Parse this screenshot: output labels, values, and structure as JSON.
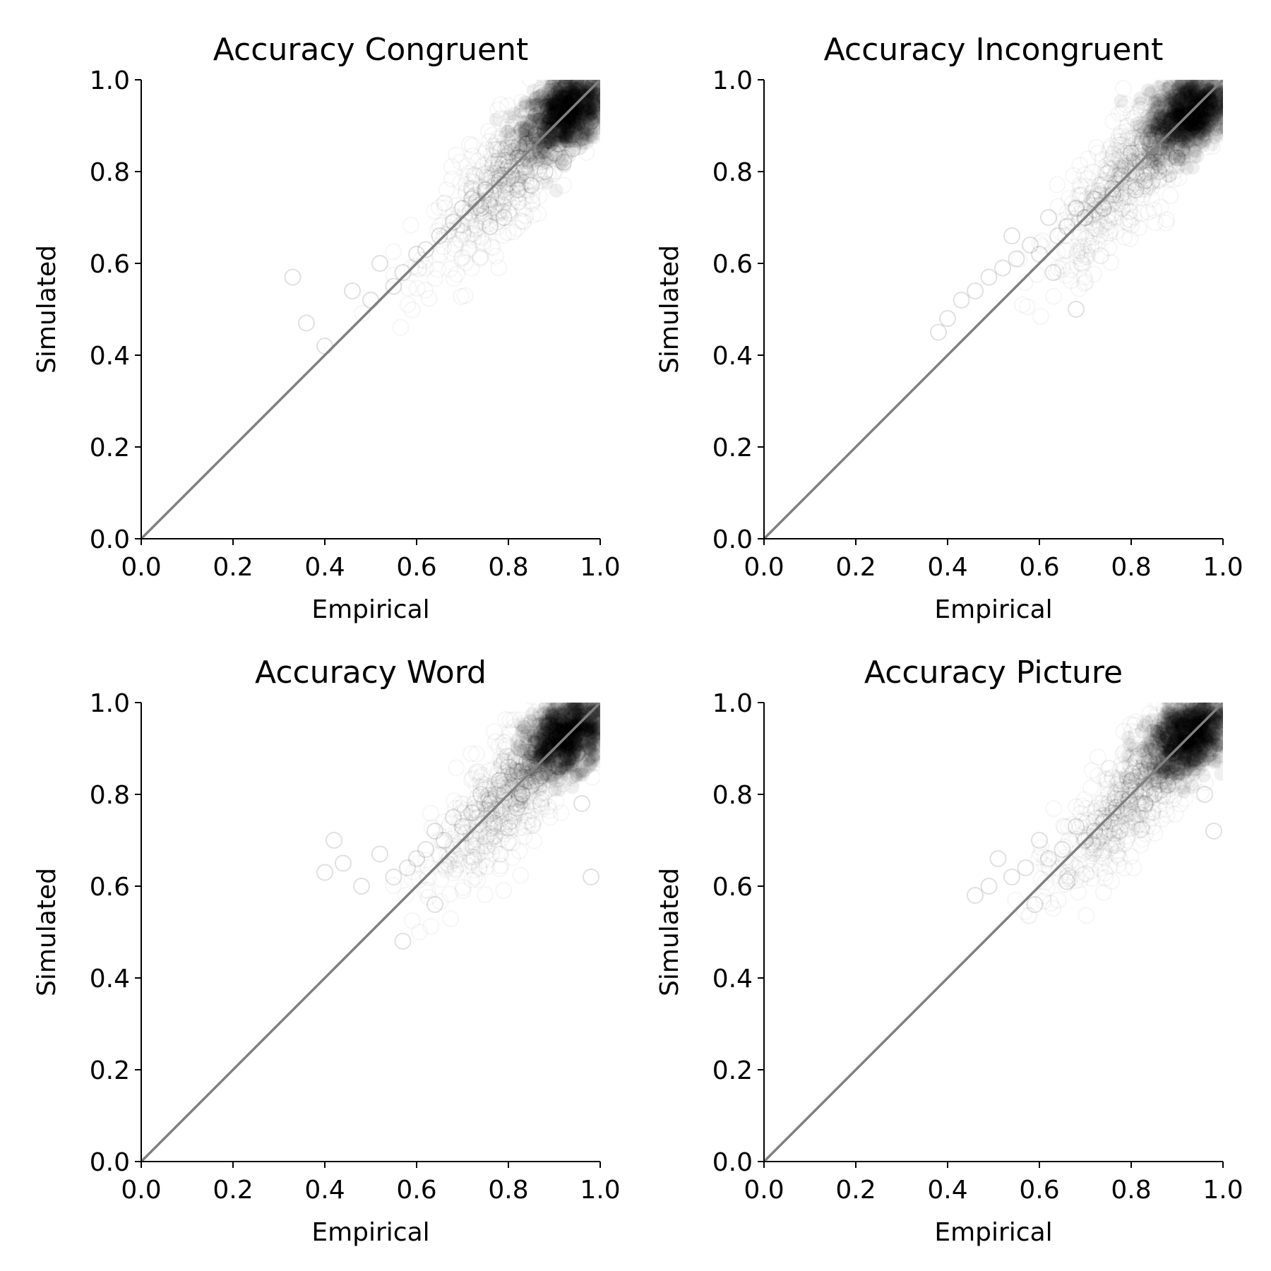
{
  "chart_data": [
    {
      "type": "scatter",
      "title": "Accuracy Congruent",
      "xlabel": "Empirical",
      "ylabel": "Simulated",
      "xlim": [
        0.0,
        1.0
      ],
      "ylim": [
        0.0,
        1.0
      ],
      "xticks": [
        "0.0",
        "0.2",
        "0.4",
        "0.6",
        "0.8",
        "1.0"
      ],
      "yticks": [
        "0.0",
        "0.2",
        "0.4",
        "0.6",
        "0.8",
        "1.0"
      ],
      "reference_line": {
        "from": [
          0,
          0
        ],
        "to": [
          1,
          1
        ],
        "color": "#808080"
      },
      "point_color": "#000000",
      "point_alpha": "very low (dense overlap appears black)",
      "series": [
        {
          "x": [
            0.95,
            0.93,
            0.97,
            0.91,
            0.89,
            0.94,
            0.96,
            0.92,
            0.98,
            0.9,
            0.88,
            0.93,
            0.95,
            0.87,
            0.91,
            0.86,
            0.94,
            0.9,
            0.84,
            0.92,
            0.82,
            0.88,
            0.8,
            0.78,
            0.85,
            0.75,
            0.72,
            0.7,
            0.68,
            0.65,
            0.62,
            0.6,
            0.57,
            0.55,
            0.52,
            0.5,
            0.46,
            0.4,
            0.36,
            0.33,
            0.76,
            0.74,
            0.82,
            0.79
          ],
          "y": [
            0.95,
            0.93,
            0.97,
            0.9,
            0.92,
            0.88,
            0.93,
            0.96,
            0.91,
            0.94,
            0.89,
            0.87,
            0.9,
            0.91,
            0.86,
            0.88,
            0.85,
            0.84,
            0.86,
            0.82,
            0.83,
            0.8,
            0.81,
            0.78,
            0.77,
            0.76,
            0.74,
            0.72,
            0.69,
            0.66,
            0.63,
            0.62,
            0.58,
            0.55,
            0.6,
            0.52,
            0.54,
            0.42,
            0.47,
            0.57,
            0.68,
            0.72,
            0.76,
            0.7
          ]
        }
      ]
    },
    {
      "type": "scatter",
      "title": "Accuracy Incongruent",
      "xlabel": "Empirical",
      "ylabel": "Simulated",
      "xlim": [
        0.0,
        1.0
      ],
      "ylim": [
        0.0,
        1.0
      ],
      "xticks": [
        "0.0",
        "0.2",
        "0.4",
        "0.6",
        "0.8",
        "1.0"
      ],
      "yticks": [
        "0.0",
        "0.2",
        "0.4",
        "0.6",
        "0.8",
        "1.0"
      ],
      "reference_line": {
        "from": [
          0,
          0
        ],
        "to": [
          1,
          1
        ],
        "color": "#808080"
      },
      "point_color": "#000000",
      "point_alpha": "very low (dense overlap appears black)",
      "series": [
        {
          "x": [
            0.92,
            0.9,
            0.94,
            0.88,
            0.86,
            0.95,
            0.91,
            0.89,
            0.93,
            0.97,
            0.85,
            0.87,
            0.84,
            0.9,
            0.82,
            0.86,
            0.8,
            0.83,
            0.78,
            0.81,
            0.76,
            0.74,
            0.72,
            0.7,
            0.68,
            0.66,
            0.64,
            0.62,
            0.6,
            0.58,
            0.55,
            0.52,
            0.49,
            0.46,
            0.43,
            0.4,
            0.38,
            0.54,
            0.68,
            0.63
          ],
          "y": [
            0.92,
            0.9,
            0.94,
            0.87,
            0.89,
            0.93,
            0.85,
            0.91,
            0.96,
            0.95,
            0.84,
            0.88,
            0.86,
            0.83,
            0.82,
            0.8,
            0.84,
            0.78,
            0.79,
            0.76,
            0.75,
            0.72,
            0.74,
            0.7,
            0.72,
            0.68,
            0.66,
            0.7,
            0.62,
            0.64,
            0.61,
            0.59,
            0.57,
            0.54,
            0.52,
            0.48,
            0.45,
            0.66,
            0.5,
            0.58
          ]
        }
      ]
    },
    {
      "type": "scatter",
      "title": "Accuracy Word",
      "xlabel": "Empirical",
      "ylabel": "Simulated",
      "xlim": [
        0.0,
        1.0
      ],
      "ylim": [
        0.0,
        1.0
      ],
      "xticks": [
        "0.0",
        "0.2",
        "0.4",
        "0.6",
        "0.8",
        "1.0"
      ],
      "yticks": [
        "0.0",
        "0.2",
        "0.4",
        "0.6",
        "0.8",
        "1.0"
      ],
      "reference_line": {
        "from": [
          0,
          0
        ],
        "to": [
          1,
          1
        ],
        "color": "#808080"
      },
      "point_color": "#000000",
      "point_alpha": "very low (dense overlap appears black)",
      "series": [
        {
          "x": [
            0.94,
            0.92,
            0.96,
            0.9,
            0.88,
            0.93,
            0.86,
            0.91,
            0.95,
            0.89,
            0.84,
            0.87,
            0.82,
            0.85,
            0.8,
            0.83,
            0.78,
            0.76,
            0.74,
            0.72,
            0.7,
            0.68,
            0.66,
            0.64,
            0.62,
            0.6,
            0.58,
            0.55,
            0.52,
            0.48,
            0.44,
            0.42,
            0.4,
            0.96,
            0.98,
            0.64,
            0.57
          ],
          "y": [
            0.94,
            0.92,
            0.96,
            0.9,
            0.93,
            0.88,
            0.91,
            0.86,
            0.89,
            0.95,
            0.87,
            0.84,
            0.85,
            0.82,
            0.86,
            0.8,
            0.83,
            0.78,
            0.8,
            0.76,
            0.73,
            0.75,
            0.7,
            0.72,
            0.68,
            0.66,
            0.64,
            0.62,
            0.67,
            0.6,
            0.65,
            0.7,
            0.63,
            0.78,
            0.62,
            0.56,
            0.48
          ]
        }
      ]
    },
    {
      "type": "scatter",
      "title": "Accuracy Picture",
      "xlabel": "Empirical",
      "ylabel": "Simulated",
      "xlim": [
        0.0,
        1.0
      ],
      "ylim": [
        0.0,
        1.0
      ],
      "xticks": [
        "0.0",
        "0.2",
        "0.4",
        "0.6",
        "0.8",
        "1.0"
      ],
      "yticks": [
        "0.0",
        "0.2",
        "0.4",
        "0.6",
        "0.8",
        "1.0"
      ],
      "reference_line": {
        "from": [
          0,
          0
        ],
        "to": [
          1,
          1
        ],
        "color": "#808080"
      },
      "point_color": "#000000",
      "point_alpha": "very low (dense overlap appears black)",
      "series": [
        {
          "x": [
            0.93,
            0.91,
            0.95,
            0.89,
            0.87,
            0.94,
            0.9,
            0.92,
            0.97,
            0.86,
            0.84,
            0.88,
            0.82,
            0.85,
            0.8,
            0.83,
            0.78,
            0.76,
            0.74,
            0.72,
            0.7,
            0.68,
            0.65,
            0.62,
            0.6,
            0.57,
            0.54,
            0.51,
            0.49,
            0.46,
            0.96,
            0.98,
            0.66,
            0.59
          ],
          "y": [
            0.93,
            0.91,
            0.95,
            0.89,
            0.92,
            0.88,
            0.86,
            0.94,
            0.9,
            0.84,
            0.87,
            0.82,
            0.85,
            0.8,
            0.83,
            0.78,
            0.79,
            0.76,
            0.74,
            0.72,
            0.7,
            0.73,
            0.68,
            0.66,
            0.7,
            0.64,
            0.62,
            0.66,
            0.6,
            0.58,
            0.8,
            0.72,
            0.61,
            0.56
          ]
        }
      ]
    }
  ]
}
